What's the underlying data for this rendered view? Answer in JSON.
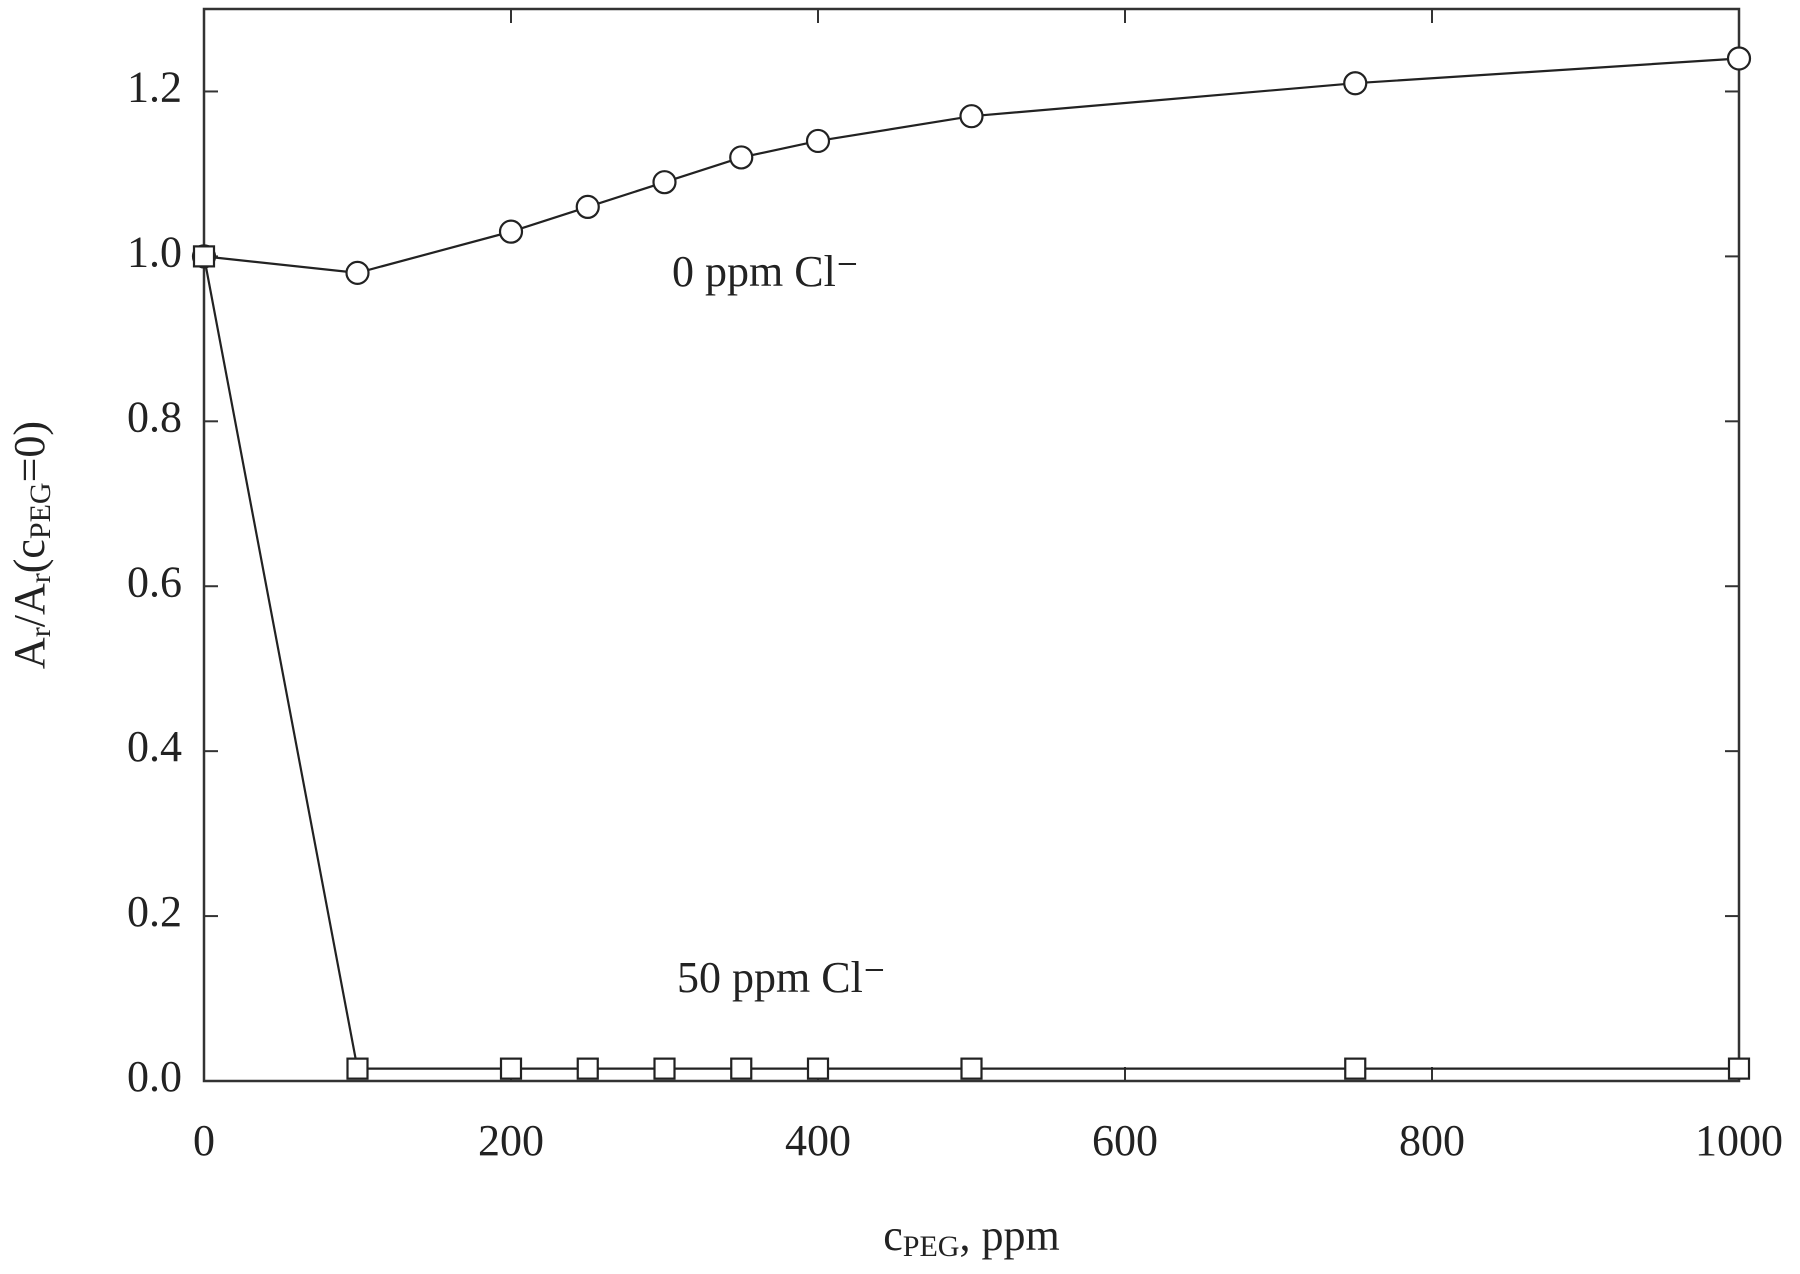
{
  "chart_data": {
    "type": "line",
    "x_label": [
      "c",
      "PEG",
      ", ppm"
    ],
    "y_label": [
      "A",
      "r",
      "/A",
      "r",
      "(c",
      "PEG",
      "=0)"
    ],
    "xlim": [
      0,
      1000
    ],
    "xticks": [
      0,
      200,
      400,
      600,
      800,
      1000
    ],
    "ylim": [
      0,
      1.3
    ],
    "yticks": [
      {
        "value": 0,
        "label": "0.0"
      },
      0.2,
      0.4,
      0.6,
      0.8,
      {
        "value": 1,
        "label": "1.0"
      },
      1.2
    ],
    "grid": false,
    "series": [
      {
        "name": "0 ppm Cl⁻",
        "color": "#222222",
        "marker": "circle",
        "x": [
          0,
          100,
          200,
          250,
          300,
          350,
          400,
          500,
          750,
          1000
        ],
        "values": [
          1.0,
          0.98,
          1.03,
          1.06,
          1.09,
          1.12,
          1.14,
          1.17,
          1.21,
          1.24
        ]
      },
      {
        "name": "50 ppm Cl⁻",
        "color": "#222222",
        "marker": "square",
        "x": [
          0,
          100,
          200,
          250,
          300,
          350,
          400,
          500,
          750,
          1000
        ],
        "values": [
          1.0,
          0.015,
          0.015,
          0.015,
          0.015,
          0.015,
          0.015,
          0.015,
          0.015,
          0.015
        ]
      }
    ]
  }
}
